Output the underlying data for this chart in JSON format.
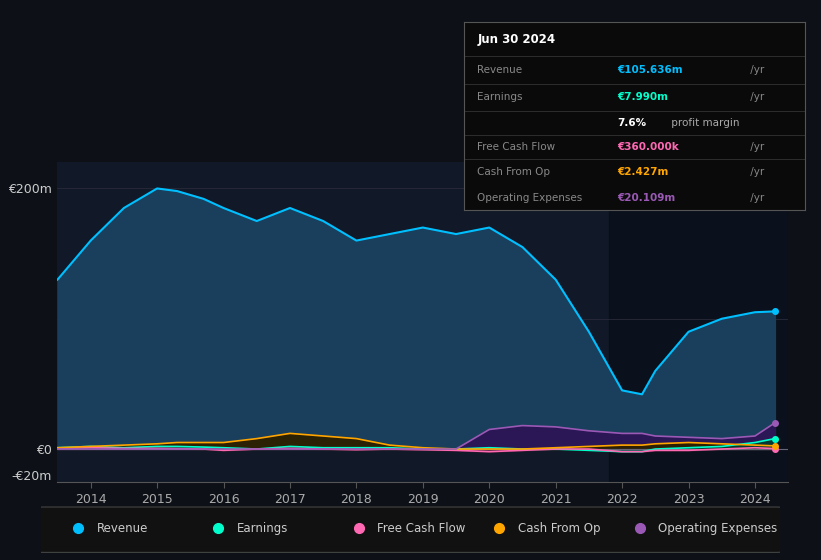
{
  "bg_color": "#0d1117",
  "plot_bg": "#111827",
  "ylabel_200": "€200m",
  "ylabel_0": "€0",
  "ylabel_neg20": "-€20m",
  "years": [
    2013.5,
    2014,
    2014.5,
    2015,
    2015.3,
    2015.7,
    2016,
    2016.5,
    2017,
    2017.5,
    2018,
    2018.5,
    2019,
    2019.5,
    2020,
    2020.5,
    2021,
    2021.5,
    2022,
    2022.3,
    2022.5,
    2023,
    2023.5,
    2024,
    2024.3
  ],
  "revenue": [
    130,
    160,
    185,
    200,
    198,
    192,
    185,
    175,
    185,
    175,
    160,
    165,
    170,
    165,
    170,
    155,
    130,
    90,
    45,
    42,
    60,
    90,
    100,
    105,
    105.636
  ],
  "earnings": [
    1,
    2,
    1,
    2,
    2,
    1.5,
    1,
    0,
    2,
    1,
    1,
    1,
    0,
    0,
    1,
    0,
    0,
    -1,
    -2,
    -2,
    0,
    1,
    2,
    5,
    7.99
  ],
  "free_cash_flow": [
    0.5,
    1,
    0.5,
    0.5,
    0.3,
    0,
    -1,
    0,
    0.5,
    0,
    -0.5,
    0,
    -0.5,
    -1,
    -2,
    -1,
    0,
    0,
    -2,
    -2,
    -1,
    -1,
    0,
    1,
    0.36
  ],
  "cash_from_op": [
    1,
    2,
    3,
    4,
    5,
    5,
    5,
    8,
    12,
    10,
    8,
    3,
    1,
    0,
    0,
    0,
    1,
    2,
    3,
    3,
    4,
    5,
    4,
    3,
    2.427
  ],
  "operating_expenses": [
    0,
    0,
    0,
    0,
    0,
    0,
    0,
    0,
    0,
    0,
    0,
    0,
    0,
    0,
    15,
    18,
    17,
    14,
    12,
    12,
    10,
    9,
    8,
    10,
    20.109
  ],
  "revenue_color": "#00bfff",
  "earnings_color": "#00ffcc",
  "fcf_color": "#ff69b4",
  "cashop_color": "#ffa500",
  "opex_color": "#9b59b6",
  "revenue_fill": "#1a3f5c",
  "earnings_fill": "#003d30",
  "fcf_fill": "#5a1a35",
  "cashop_fill": "#2d2000",
  "opex_fill": "#2d1555",
  "tooltip_date": "Jun 30 2024",
  "tooltip_revenue_label": "Revenue",
  "tooltip_revenue_val": "€105.636m",
  "tooltip_earnings_label": "Earnings",
  "tooltip_earnings_val": "€7.990m",
  "tooltip_margin_pct": "7.6%",
  "tooltip_margin_text": " profit margin",
  "tooltip_fcf_label": "Free Cash Flow",
  "tooltip_fcf_val": "€360.000k",
  "tooltip_cashop_label": "Cash From Op",
  "tooltip_cashop_val": "€2.427m",
  "tooltip_opex_label": "Operating Expenses",
  "tooltip_opex_val": "€20.109m",
  "legend_items": [
    "Revenue",
    "Earnings",
    "Free Cash Flow",
    "Cash From Op",
    "Operating Expenses"
  ],
  "legend_colors": [
    "#00bfff",
    "#00ffcc",
    "#ff69b4",
    "#ffa500",
    "#9b59b6"
  ],
  "xticks": [
    2014,
    2015,
    2016,
    2017,
    2018,
    2019,
    2020,
    2021,
    2022,
    2023,
    2024
  ]
}
